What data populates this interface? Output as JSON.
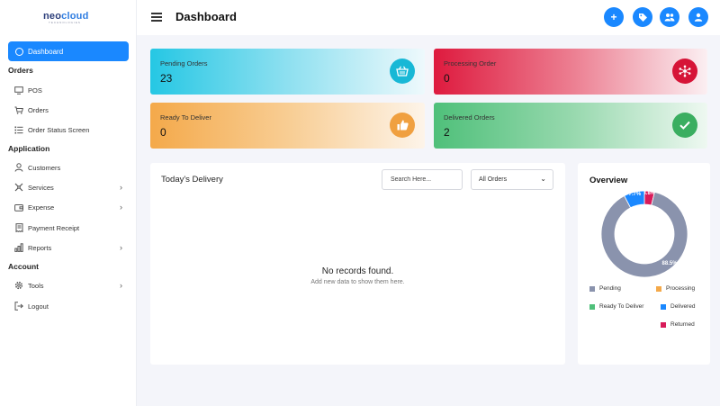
{
  "brand": {
    "name_a": "neo",
    "name_b": "cloud",
    "sub": "TECHNOLOGIES"
  },
  "sidebar": {
    "active": {
      "label": "Dashboard",
      "icon": "dashboard-icon"
    },
    "sections": [
      {
        "title": "Orders",
        "items": [
          {
            "label": "POS",
            "icon": "monitor-icon"
          },
          {
            "label": "Orders",
            "icon": "cart-icon"
          },
          {
            "label": "Order Status Screen",
            "icon": "list-icon"
          }
        ]
      },
      {
        "title": "Application",
        "items": [
          {
            "label": "Customers",
            "icon": "user-icon"
          },
          {
            "label": "Services",
            "icon": "services-icon",
            "chevron": true
          },
          {
            "label": "Expense",
            "icon": "wallet-icon",
            "chevron": true
          },
          {
            "label": "Payment Receipt",
            "icon": "receipt-icon"
          },
          {
            "label": "Reports",
            "icon": "chart-icon",
            "chevron": true
          }
        ]
      },
      {
        "title": "Account",
        "items": [
          {
            "label": "Tools",
            "icon": "gear-icon",
            "chevron": true
          },
          {
            "label": "Logout",
            "icon": "logout-icon"
          }
        ]
      }
    ]
  },
  "header": {
    "title": "Dashboard"
  },
  "stats": {
    "pending": {
      "label": "Pending Orders",
      "value": "23"
    },
    "processing": {
      "label": "Processing Order",
      "value": "0"
    },
    "ready": {
      "label": "Ready To Deliver",
      "value": "0"
    },
    "delivered": {
      "label": "Delivered Orders",
      "value": "2"
    }
  },
  "delivery": {
    "title": "Today's Delivery",
    "search_placeholder": "Search Here...",
    "filter_value": "All Orders",
    "empty_title": "No records found.",
    "empty_sub": "Add new data to show them here."
  },
  "overview": {
    "title": "Overview",
    "slices": [
      {
        "name": "Pending",
        "pct": 88.5,
        "label": "88.5%",
        "color": "#8a93ad"
      },
      {
        "name": "Processing",
        "pct": 0,
        "label": "",
        "color": "#f4a94a"
      },
      {
        "name": "Ready To Deliver",
        "pct": 0,
        "label": "",
        "color": "#4fc07a"
      },
      {
        "name": "Delivered",
        "pct": 7.7,
        "label": "7.7%",
        "color": "#1a88ff"
      },
      {
        "name": "Returned",
        "pct": 3.8,
        "label": "3.8%",
        "color": "#d81b5a"
      }
    ],
    "legend": [
      "Pending",
      "Processing",
      "Ready To Deliver",
      "Delivered",
      "Returned"
    ]
  }
}
